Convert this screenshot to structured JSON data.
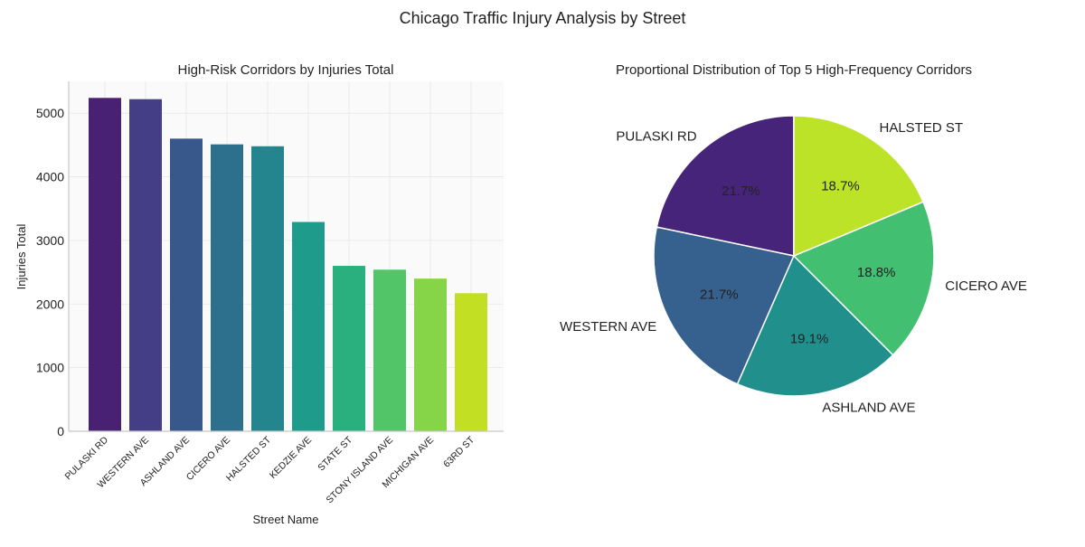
{
  "figure_title": "Chicago Traffic Injury Analysis by Street",
  "chart_data": [
    {
      "type": "bar",
      "title": "High-Risk Corridors by Injuries Total",
      "xlabel": "Street Name",
      "ylabel": "Injuries Total",
      "ylim": [
        0,
        5500
      ],
      "yticks": [
        0,
        1000,
        2000,
        3000,
        4000,
        5000
      ],
      "grid": true,
      "categories": [
        "PULASKI RD",
        "WESTERN AVE",
        "ASHLAND AVE",
        "CICERO AVE",
        "HALSTED ST",
        "KEDZIE AVE",
        "STATE ST",
        "STONY ISLAND AVE",
        "MICHIGAN AVE",
        "63RD ST"
      ],
      "values": [
        5240,
        5220,
        4600,
        4510,
        4480,
        3290,
        2600,
        2540,
        2400,
        2170
      ],
      "colors": [
        "#482173",
        "#433e85",
        "#38588c",
        "#2d708e",
        "#25858e",
        "#1e9b8a",
        "#2ab07f",
        "#52c569",
        "#86d549",
        "#c2df23"
      ]
    },
    {
      "type": "pie",
      "title": "Proportional Distribution of Top 5 High-Frequency Corridors",
      "labels": [
        "PULASKI RD",
        "WESTERN AVE",
        "ASHLAND AVE",
        "CICERO AVE",
        "HALSTED ST"
      ],
      "values": [
        21.7,
        21.7,
        19.1,
        18.8,
        18.7
      ],
      "pct_labels": [
        "21.7%",
        "21.7%",
        "19.1%",
        "18.8%",
        "18.7%"
      ],
      "colors": [
        "#46247a",
        "#36608d",
        "#21908d",
        "#43bf71",
        "#bde329"
      ],
      "start_angle": 90,
      "direction": "counterclockwise"
    }
  ]
}
